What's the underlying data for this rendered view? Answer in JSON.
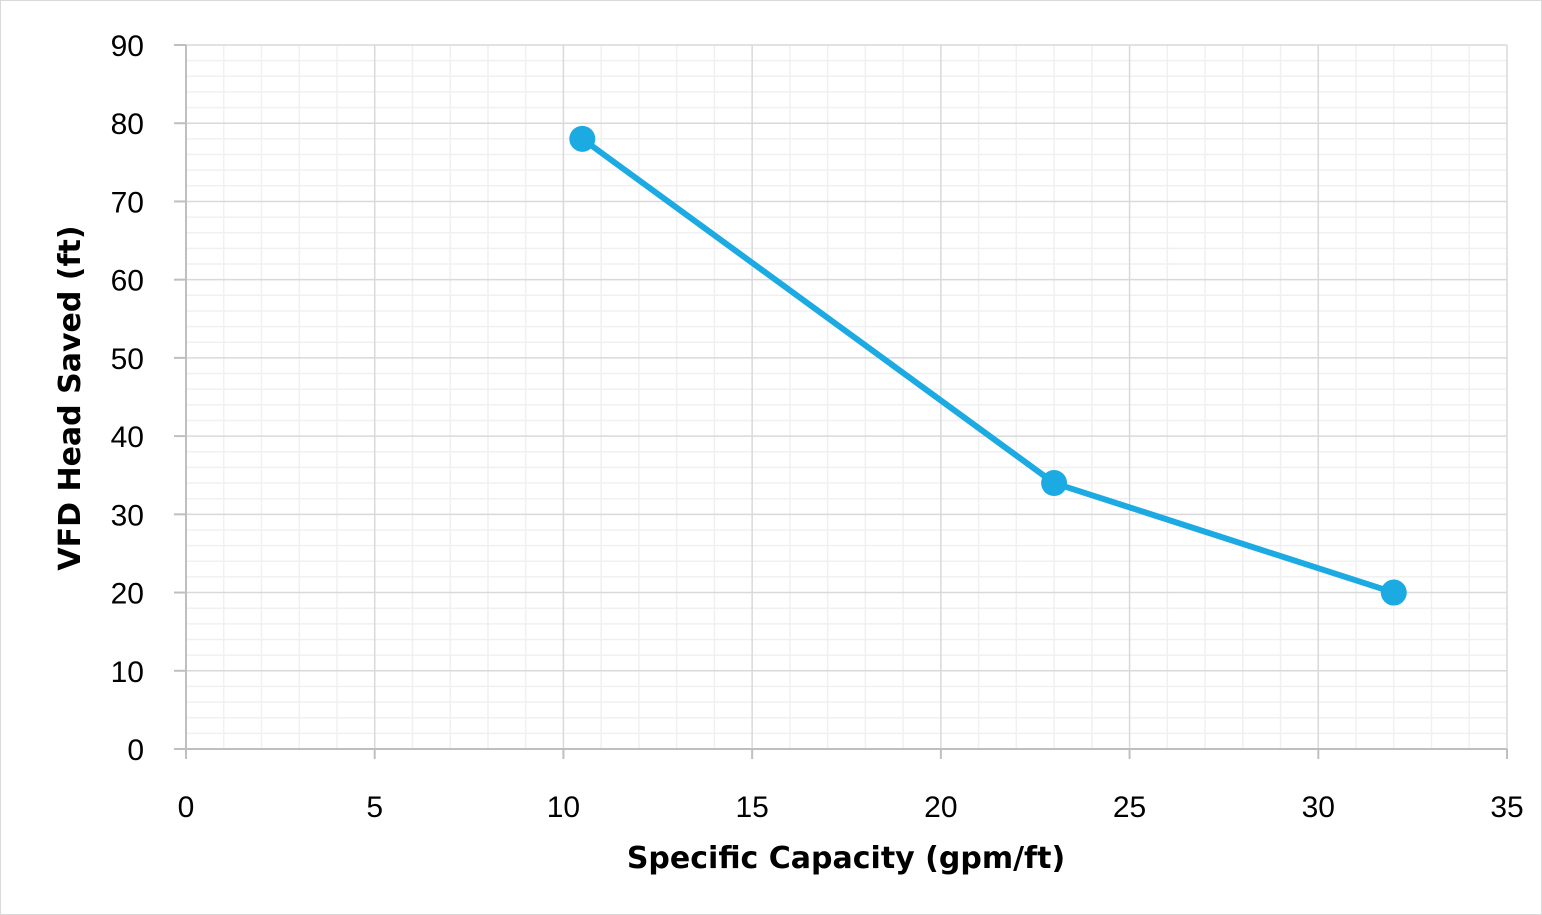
{
  "chart_data": {
    "type": "line",
    "title": "",
    "xlabel": "Specific Capacity (gpm/ft)",
    "ylabel": "VFD Head Saved (ft)",
    "xlim": [
      0,
      35
    ],
    "ylim": [
      0,
      90
    ],
    "x_ticks": [
      "0",
      "5",
      "10",
      "15",
      "20",
      "25",
      "30",
      "35"
    ],
    "y_ticks": [
      "0",
      "10",
      "20",
      "30",
      "40",
      "50",
      "60",
      "70",
      "80",
      "90"
    ],
    "x_major_step": 5,
    "y_major_step": 10,
    "x_minor_step": 1,
    "y_minor_step": 2,
    "grid": true,
    "legend": "none",
    "series": [
      {
        "color": "#1CAAE2",
        "marker": "circle",
        "points": [
          {
            "x": 10.5,
            "y": 78
          },
          {
            "x": 23,
            "y": 34
          },
          {
            "x": 32,
            "y": 20
          }
        ]
      }
    ]
  }
}
